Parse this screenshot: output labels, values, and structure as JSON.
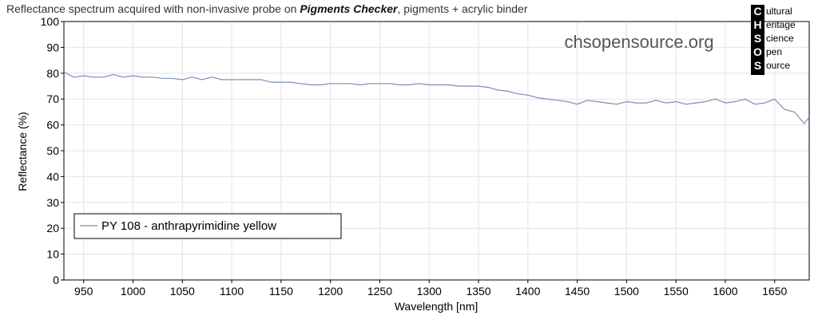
{
  "title": {
    "prefix": "Reflectance spectrum acquired with non-invasive probe on ",
    "bold": "Pigments Checker",
    "suffix": ", pigments + acrylic binder"
  },
  "watermark": "chsopensource.org",
  "logo": {
    "letters": [
      "C",
      "H",
      "S",
      "O",
      "S"
    ],
    "words": [
      "ultural",
      "eritage",
      "cience",
      "pen",
      "ource"
    ]
  },
  "colors": {
    "series": "#7a8fb5",
    "grid": "#e3e3e3",
    "axis": "#000000",
    "logo_bg": "#000000"
  },
  "chart_data": {
    "type": "line",
    "xlabel": "Wavelength [nm]",
    "ylabel": "Reflectance (%)",
    "xlim": [
      930,
      1685
    ],
    "ylim": [
      0,
      100
    ],
    "xticks": [
      950,
      1000,
      1050,
      1100,
      1150,
      1200,
      1250,
      1300,
      1350,
      1400,
      1450,
      1500,
      1550,
      1600,
      1650
    ],
    "yticks": [
      0,
      10,
      20,
      30,
      40,
      50,
      60,
      70,
      80,
      90,
      100
    ],
    "grid": true,
    "legend_position": "bottom-left",
    "series": [
      {
        "name": "PY 108 - anthrapyrimidine yellow",
        "x": [
          930,
          940,
          950,
          960,
          970,
          980,
          990,
          1000,
          1010,
          1020,
          1030,
          1040,
          1050,
          1060,
          1070,
          1080,
          1090,
          1100,
          1110,
          1120,
          1130,
          1140,
          1150,
          1160,
          1170,
          1180,
          1190,
          1200,
          1210,
          1220,
          1230,
          1240,
          1250,
          1260,
          1270,
          1280,
          1290,
          1300,
          1310,
          1320,
          1330,
          1340,
          1350,
          1360,
          1370,
          1380,
          1390,
          1400,
          1410,
          1420,
          1430,
          1440,
          1450,
          1460,
          1470,
          1480,
          1490,
          1500,
          1510,
          1520,
          1530,
          1540,
          1550,
          1560,
          1570,
          1580,
          1590,
          1600,
          1610,
          1620,
          1630,
          1640,
          1650,
          1660,
          1670,
          1680,
          1685
        ],
        "y": [
          80.5,
          78.5,
          79.0,
          78.5,
          78.5,
          79.5,
          78.5,
          79.0,
          78.5,
          78.5,
          78.0,
          78.0,
          77.5,
          78.5,
          77.5,
          78.5,
          77.5,
          77.5,
          77.5,
          77.5,
          77.5,
          76.5,
          76.5,
          76.5,
          76.0,
          75.5,
          75.5,
          76.0,
          76.0,
          76.0,
          75.5,
          76.0,
          76.0,
          76.0,
          75.5,
          75.5,
          76.0,
          75.5,
          75.5,
          75.5,
          75.0,
          75.0,
          75.0,
          74.5,
          73.5,
          73.0,
          72.0,
          71.5,
          70.5,
          70.0,
          69.5,
          69.0,
          68.0,
          69.5,
          69.0,
          68.5,
          68.0,
          69.0,
          68.5,
          68.5,
          69.5,
          68.5,
          69.0,
          68.0,
          68.5,
          69.0,
          70.0,
          68.5,
          69.0,
          70.0,
          68.0,
          68.5,
          70.0,
          66.0,
          65.0,
          60.5,
          63.0
        ]
      }
    ]
  }
}
